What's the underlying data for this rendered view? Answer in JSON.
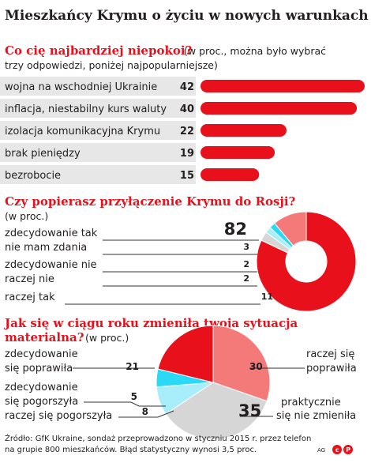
{
  "title": "Mieszkańcy Krymu o życiu w nowych warunkach",
  "colors": {
    "red": "#e8111b",
    "pink": "#f47a7a",
    "light_pink": "#f9b4b4",
    "cyan": "#2ad9f5",
    "light_cyan": "#a8eefa",
    "gray": "#d6d6d6",
    "text": "#231f20",
    "dark_gray": "#333333",
    "row_gray": "#e7e7e7"
  },
  "chart_data": [
    {
      "type": "bar",
      "title": "Co cię najbardziej niepokoi?",
      "subtitle_line1": "(w proc., można było wybrać",
      "subtitle_line2": "trzy odpowiedzi, poniżej najpopularniejsze)",
      "categories": [
        "wojna na wschodniej Ukrainie",
        "inflacja, niestabilny kurs waluty",
        "izolacja komunikacyjna Krymu",
        "brak pieniędzy",
        "bezrobocie"
      ],
      "values": [
        42,
        40,
        22,
        19,
        15
      ],
      "ylim": [
        0,
        42
      ]
    },
    {
      "type": "pie",
      "title": "Czy popierasz przyłączenie Krymu do Rosji?",
      "subtitle": "(w proc.)",
      "categories": [
        "zdecydowanie tak",
        "nie mam zdania",
        "zdecydowanie nie",
        "raczej nie",
        "raczej tak"
      ],
      "values": [
        82,
        3,
        2,
        2,
        11
      ],
      "labels": [
        "82",
        "3",
        "2",
        "2",
        "11"
      ]
    },
    {
      "type": "pie",
      "title_line1": "Jak się w ciągu roku zmieniła twoja sytuacja",
      "title_line2": "materialna?",
      "subtitle": "(w proc.)",
      "categories": [
        "zdecydowanie się poprawiła",
        "raczej się poprawiła",
        "praktycznie się nie zmieniła",
        "raczej się pogorszyła",
        "zdecydowanie się pogorszyła"
      ],
      "label_lines": [
        [
          "zdecydowanie",
          "się poprawiła"
        ],
        [
          "raczej się",
          "poprawiła"
        ],
        [
          "praktycznie",
          "się nie zmieniła"
        ],
        [
          "raczej się pogorszyła"
        ],
        [
          "zdecydowanie",
          "się pogorszyła"
        ]
      ],
      "values": [
        21,
        30,
        35,
        8,
        5
      ],
      "labels": [
        "21",
        "30",
        "35",
        "8",
        "5"
      ]
    }
  ],
  "source_line1": "Źródło: GfK Ukraine, sondaż przeprowadzono w styczniu 2015 r. przez telefon",
  "source_line2": "na grupie 800 mieszkańców. Błąd statystyczny wynosi 3,5 proc.",
  "credit": "AG"
}
